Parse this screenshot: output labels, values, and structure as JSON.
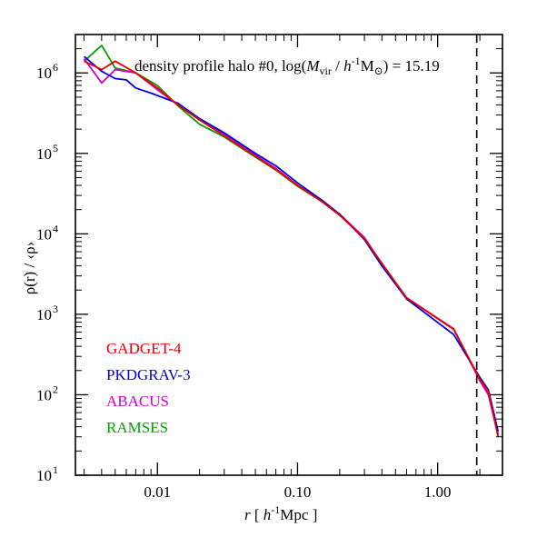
{
  "chart_data": {
    "type": "line",
    "x_scale": "log",
    "y_scale": "log",
    "xlim": [
      0.0026,
      2.9
    ],
    "ylim": [
      10,
      3000000
    ],
    "title_parts": {
      "prefix": "density profile halo #0,  log(",
      "m": "M",
      "m_sub": "vir",
      "slash": " / ",
      "h": "h",
      "h_sup": "-1",
      "msun": "M",
      "msun_sub": "⊙",
      "suffix": ") = 15.19"
    },
    "xlabel_parts": {
      "r": "r",
      "open": "  [ ",
      "h": "h",
      "h_sup": "-1",
      "unit": "Mpc ]"
    },
    "ylabel": "ρ(r) / ‹ρ›",
    "x_ticks": [
      {
        "value": 0.01,
        "label": "0.01"
      },
      {
        "value": 0.1,
        "label": "0.10"
      },
      {
        "value": 1.0,
        "label": "1.00"
      }
    ],
    "y_ticks": [
      {
        "value": 10,
        "base": "10",
        "exp": "1"
      },
      {
        "value": 100,
        "base": "10",
        "exp": "2"
      },
      {
        "value": 1000,
        "base": "10",
        "exp": "3"
      },
      {
        "value": 10000,
        "base": "10",
        "exp": "4"
      },
      {
        "value": 100000,
        "base": "10",
        "exp": "5"
      },
      {
        "value": 1000000,
        "base": "10",
        "exp": "6"
      }
    ],
    "vline_x": 1.9,
    "series": [
      {
        "name": "RAMSES",
        "color": "#00a000",
        "points": [
          [
            0.003,
            1400000
          ],
          [
            0.004,
            2200000
          ],
          [
            0.005,
            1150000
          ],
          [
            0.007,
            1000000
          ],
          [
            0.01,
            700000
          ],
          [
            0.014,
            390000
          ],
          [
            0.02,
            230000
          ],
          [
            0.03,
            160000
          ],
          [
            0.05,
            90000
          ],
          [
            0.07,
            62000
          ],
          [
            0.1,
            39000
          ],
          [
            0.15,
            25000
          ],
          [
            0.2,
            17000
          ],
          [
            0.3,
            9000
          ],
          [
            0.4,
            4200
          ],
          [
            0.6,
            1600
          ],
          [
            1.3,
            650
          ],
          [
            2.0,
            150
          ],
          [
            2.3,
            100
          ],
          [
            2.7,
            32
          ]
        ]
      },
      {
        "name": "ABACUS",
        "color": "#d000d0",
        "points": [
          [
            0.003,
            1500000
          ],
          [
            0.004,
            750000
          ],
          [
            0.005,
            1100000
          ],
          [
            0.007,
            1000000
          ],
          [
            0.01,
            620000
          ],
          [
            0.014,
            400000
          ],
          [
            0.02,
            270000
          ],
          [
            0.03,
            175000
          ],
          [
            0.05,
            95000
          ],
          [
            0.07,
            65000
          ],
          [
            0.1,
            40000
          ],
          [
            0.15,
            25500
          ],
          [
            0.2,
            17500
          ],
          [
            0.3,
            9000
          ],
          [
            0.4,
            4200
          ],
          [
            0.6,
            1600
          ],
          [
            1.3,
            650
          ],
          [
            2.0,
            150
          ],
          [
            2.3,
            100
          ],
          [
            2.7,
            32
          ]
        ]
      },
      {
        "name": "PKDGRAV-3",
        "color": "#0000e0",
        "points": [
          [
            0.003,
            1600000
          ],
          [
            0.004,
            1050000
          ],
          [
            0.005,
            850000
          ],
          [
            0.006,
            820000
          ],
          [
            0.007,
            650000
          ],
          [
            0.009,
            560000
          ],
          [
            0.014,
            420000
          ],
          [
            0.02,
            270000
          ],
          [
            0.03,
            180000
          ],
          [
            0.05,
            100000
          ],
          [
            0.07,
            70000
          ],
          [
            0.1,
            43000
          ],
          [
            0.15,
            26000
          ],
          [
            0.2,
            17500
          ],
          [
            0.3,
            8500
          ],
          [
            0.4,
            4000
          ],
          [
            0.6,
            1550
          ],
          [
            1.3,
            560
          ],
          [
            2.0,
            165
          ],
          [
            2.3,
            115
          ],
          [
            2.7,
            35
          ]
        ]
      },
      {
        "name": "GADGET-4",
        "color": "#ee0000",
        "points": [
          [
            0.003,
            1400000
          ],
          [
            0.004,
            1100000
          ],
          [
            0.005,
            1400000
          ],
          [
            0.007,
            1000000
          ],
          [
            0.01,
            650000
          ],
          [
            0.014,
            400000
          ],
          [
            0.02,
            260000
          ],
          [
            0.03,
            165000
          ],
          [
            0.05,
            92000
          ],
          [
            0.07,
            63000
          ],
          [
            0.1,
            40000
          ],
          [
            0.15,
            25000
          ],
          [
            0.2,
            17000
          ],
          [
            0.3,
            8800
          ],
          [
            0.4,
            4300
          ],
          [
            0.6,
            1600
          ],
          [
            1.3,
            660
          ],
          [
            2.0,
            155
          ],
          [
            2.3,
            110
          ],
          [
            2.7,
            30
          ]
        ]
      }
    ],
    "legend": [
      {
        "label": "GADGET-4",
        "color": "#ee0000"
      },
      {
        "label": "PKDGRAV-3",
        "color": "#0000e0"
      },
      {
        "label": "ABACUS",
        "color": "#d000d0"
      },
      {
        "label": "RAMSES",
        "color": "#00a000"
      }
    ]
  }
}
